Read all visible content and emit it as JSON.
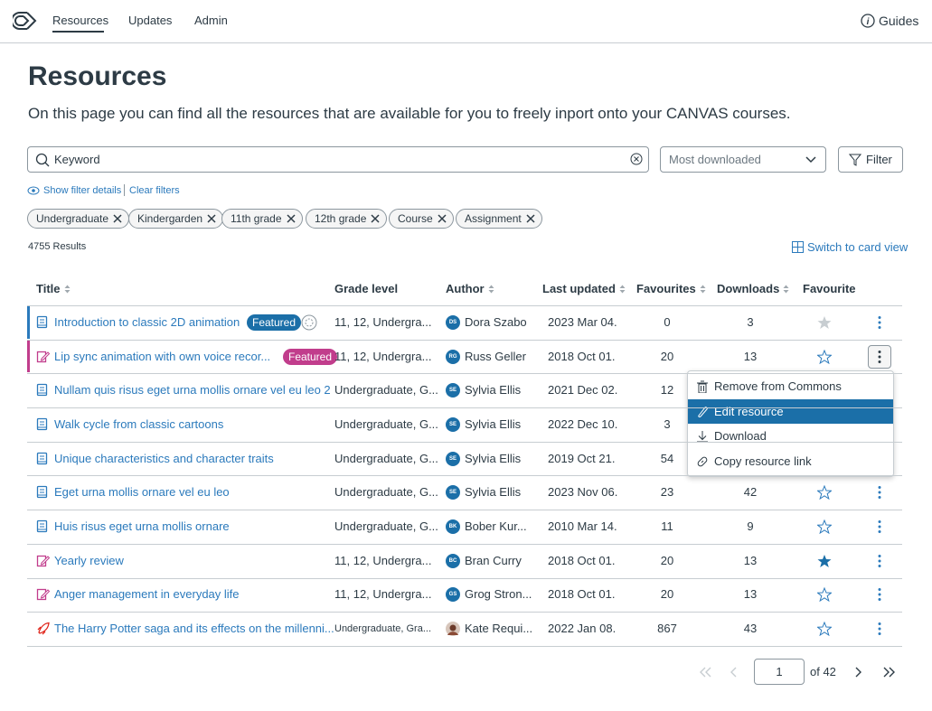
{
  "nav": {
    "items": [
      "Resources",
      "Updates",
      "Admin"
    ],
    "guides": "Guides"
  },
  "header": {
    "title": "Resources",
    "description": "On this page you can find all the resources that are available for you to freely inport onto your CANVAS courses."
  },
  "search": {
    "placeholder": "Keyword",
    "sort": "Most downloaded",
    "filter": "Filter"
  },
  "filter_links": [
    "Show filter details",
    "Clear filters"
  ],
  "tags": [
    "Undergraduate",
    "Kindergarden",
    "11th grade",
    "12th grade",
    "Course",
    "Assignment"
  ],
  "results": {
    "count": "4755 Results",
    "switch": "Switch to card view"
  },
  "table": {
    "columns": [
      {
        "label": "Title",
        "sortable": true
      },
      {
        "label": "Grade level",
        "sortable": false
      },
      {
        "label": "Author",
        "sortable": true
      },
      {
        "label": "Last updated",
        "sortable": true
      },
      {
        "label": "Favourites",
        "sortable": true
      },
      {
        "label": "Downloads",
        "sortable": true
      },
      {
        "label": "Favourite",
        "sortable": false
      }
    ],
    "rows": [
      {
        "type": "book",
        "accent": "#2b7abc",
        "title": "Introduction to classic 2D animation",
        "badge": "Featured",
        "badge_color": "#1b6fa8",
        "grade": "11, 12, Undergra...",
        "initials": "DS",
        "author": "Dora Szabo",
        "updated": "2023 Mar 04.",
        "favourites": 0,
        "downloads": 3,
        "star": "gray"
      },
      {
        "type": "edit",
        "accent": "#c13d8c",
        "title": "Lip sync animation with own voice recor...",
        "badge": "Featured",
        "badge_color": "#c13d8c",
        "grade": "11, 12, Undergra...",
        "initials": "RG",
        "author": "Russ Geller",
        "updated": "2018 Oct 01.",
        "favourites": 20,
        "downloads": 13,
        "star": "empty",
        "active": true
      },
      {
        "type": "book",
        "title": "Nullam quis risus eget urna mollis ornare vel eu leo 2",
        "grade": "Undergraduate, G...",
        "initials": "SE",
        "author": "Sylvia Ellis",
        "updated": "2021 Dec 02.",
        "favourites": 12
      },
      {
        "type": "book",
        "title": "Walk cycle from classic cartoons",
        "grade": "Undergraduate, G...",
        "initials": "SE",
        "author": "Sylvia Ellis",
        "updated": "2022 Dec 10.",
        "favourites": 3
      },
      {
        "type": "book",
        "title": "Unique characteristics and character traits",
        "grade": "Undergraduate, G...",
        "initials": "SE",
        "author": "Sylvia Ellis",
        "updated": "2019 Oct 21.",
        "favourites": 54
      },
      {
        "type": "book",
        "title": "Eget urna mollis ornare vel eu leo",
        "grade": "Undergraduate, G...",
        "initials": "SE",
        "author": "Sylvia Ellis",
        "updated": "2023 Nov 06.",
        "favourites": 23,
        "downloads": 42,
        "star": "empty"
      },
      {
        "type": "book",
        "title": "Huis risus eget urna mollis ornare",
        "grade": "Undergraduate, G...",
        "initials": "BK",
        "author": "Bober Kur...",
        "updated": "2010 Mar 14.",
        "favourites": 11,
        "downloads": 9,
        "star": "empty"
      },
      {
        "type": "edit",
        "title": "Yearly review",
        "grade": "11, 12, Undergra...",
        "initials": "BC",
        "author": "Bran Curry",
        "updated": "2018 Oct 01.",
        "favourites": 20,
        "downloads": 13,
        "star": "filled"
      },
      {
        "type": "edit",
        "title": "Anger management in everyday life",
        "grade": "11, 12, Undergra...",
        "initials": "GS",
        "author": "Grog Stron...",
        "updated": "2018 Oct 01.",
        "favourites": 20,
        "downloads": 13,
        "star": "empty"
      },
      {
        "type": "rocket",
        "title": "The Harry Potter saga and its effects on the millenni...",
        "grade": "Undergraduate, Gra...",
        "small_grade": true,
        "author": "Kate Requi...",
        "updated": "2022 Jan 08.",
        "favourites": 867,
        "downloads": 43,
        "star": "empty"
      }
    ]
  },
  "menu": {
    "items": [
      "Remove from Commons",
      "Edit resource",
      "Download",
      "Copy resource link"
    ],
    "highlighted": 1
  },
  "pagination": {
    "page": "1",
    "of": "of 42"
  }
}
